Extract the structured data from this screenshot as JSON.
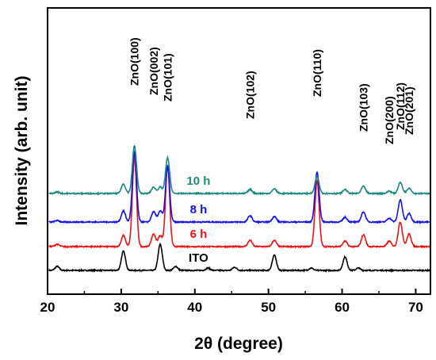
{
  "chart_data": {
    "type": "line",
    "xlabel": "2θ (degree)",
    "ylabel": "Intensity (arb. unit)",
    "xlim": [
      20,
      72
    ],
    "xticks": [
      20,
      30,
      40,
      50,
      60,
      70
    ],
    "y_tick_labels": false,
    "grid": false,
    "peak_labels": [
      {
        "label": "ZnO(100)",
        "x": 31.8
      },
      {
        "label": "ZnO(002)",
        "x": 34.4
      },
      {
        "label": "ZnO(101)",
        "x": 36.3
      },
      {
        "label": "ZnO(102)",
        "x": 47.5
      },
      {
        "label": "ZnO(110)",
        "x": 56.6
      },
      {
        "label": "ZnO(103)",
        "x": 62.9
      },
      {
        "label": "ZnO(200)",
        "x": 66.4
      },
      {
        "label": "ZnO(112)",
        "x": 67.9
      },
      {
        "label": "ZnO(201)",
        "x": 69.1
      }
    ],
    "series": [
      {
        "name": "ITO",
        "color": "#000000",
        "label_x": 40.5,
        "baseline": 0,
        "peaks": [
          [
            21.3,
            5
          ],
          [
            30.3,
            24
          ],
          [
            35.3,
            33
          ],
          [
            37.4,
            5
          ],
          [
            41.8,
            3
          ],
          [
            45.4,
            4
          ],
          [
            50.8,
            19
          ],
          [
            55.8,
            3
          ],
          [
            60.4,
            17
          ],
          [
            62.2,
            3
          ]
        ]
      },
      {
        "name": "6 h",
        "color": "#ee1111",
        "label_x": 40.5,
        "baseline": 30,
        "peaks": [
          [
            21.3,
            3
          ],
          [
            30.3,
            14
          ],
          [
            31.8,
            112
          ],
          [
            34.4,
            16
          ],
          [
            35.3,
            14
          ],
          [
            36.3,
            102
          ],
          [
            47.5,
            8
          ],
          [
            50.8,
            8
          ],
          [
            56.6,
            83
          ],
          [
            60.4,
            7
          ],
          [
            62.9,
            15
          ],
          [
            66.4,
            7
          ],
          [
            67.9,
            31
          ],
          [
            69.1,
            16
          ]
        ]
      },
      {
        "name": "8 h",
        "color": "#1111ee",
        "label_x": 40.5,
        "baseline": 61,
        "peaks": [
          [
            21.3,
            2
          ],
          [
            30.3,
            14
          ],
          [
            31.8,
            88
          ],
          [
            34.4,
            13
          ],
          [
            35.3,
            14
          ],
          [
            36.3,
            70
          ],
          [
            47.5,
            8
          ],
          [
            50.8,
            7
          ],
          [
            56.6,
            63
          ],
          [
            60.4,
            6
          ],
          [
            62.9,
            13
          ],
          [
            66.4,
            5
          ],
          [
            67.9,
            28
          ],
          [
            69.1,
            11
          ]
        ]
      },
      {
        "name": "10 h",
        "color": "#1a8a80",
        "label_x": 40.5,
        "baseline": 97,
        "peaks": [
          [
            21.3,
            2
          ],
          [
            30.3,
            12
          ],
          [
            31.8,
            60
          ],
          [
            34.4,
            8
          ],
          [
            35.3,
            8
          ],
          [
            36.3,
            45
          ],
          [
            47.5,
            5
          ],
          [
            50.8,
            6
          ],
          [
            56.6,
            21
          ],
          [
            60.4,
            5
          ],
          [
            62.9,
            9
          ],
          [
            66.4,
            3
          ],
          [
            67.9,
            14
          ],
          [
            69.1,
            7
          ]
        ]
      }
    ]
  }
}
